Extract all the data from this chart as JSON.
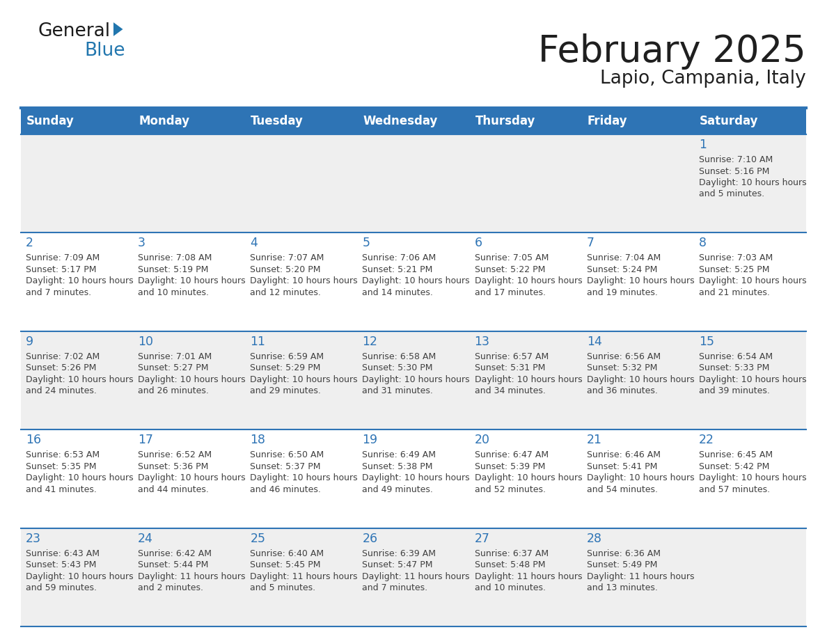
{
  "title": "February 2025",
  "subtitle": "Lapio, Campania, Italy",
  "days_of_week": [
    "Sunday",
    "Monday",
    "Tuesday",
    "Wednesday",
    "Thursday",
    "Friday",
    "Saturday"
  ],
  "header_bg": "#2E74B5",
  "header_text": "#FFFFFF",
  "cell_bg_even": "#EFEFEF",
  "cell_bg_odd": "#FFFFFF",
  "border_color": "#2E74B5",
  "day_number_color": "#2E74B5",
  "info_text_color": "#404040",
  "title_color": "#1F1F1F",
  "logo_black": "#1A1A1A",
  "logo_blue": "#2176AE",
  "calendar_data": [
    {
      "day": 1,
      "col": 6,
      "row": 0,
      "sunrise": "7:10 AM",
      "sunset": "5:16 PM",
      "daylight": "10 hours and 5 minutes."
    },
    {
      "day": 2,
      "col": 0,
      "row": 1,
      "sunrise": "7:09 AM",
      "sunset": "5:17 PM",
      "daylight": "10 hours and 7 minutes."
    },
    {
      "day": 3,
      "col": 1,
      "row": 1,
      "sunrise": "7:08 AM",
      "sunset": "5:19 PM",
      "daylight": "10 hours and 10 minutes."
    },
    {
      "day": 4,
      "col": 2,
      "row": 1,
      "sunrise": "7:07 AM",
      "sunset": "5:20 PM",
      "daylight": "10 hours and 12 minutes."
    },
    {
      "day": 5,
      "col": 3,
      "row": 1,
      "sunrise": "7:06 AM",
      "sunset": "5:21 PM",
      "daylight": "10 hours and 14 minutes."
    },
    {
      "day": 6,
      "col": 4,
      "row": 1,
      "sunrise": "7:05 AM",
      "sunset": "5:22 PM",
      "daylight": "10 hours and 17 minutes."
    },
    {
      "day": 7,
      "col": 5,
      "row": 1,
      "sunrise": "7:04 AM",
      "sunset": "5:24 PM",
      "daylight": "10 hours and 19 minutes."
    },
    {
      "day": 8,
      "col": 6,
      "row": 1,
      "sunrise": "7:03 AM",
      "sunset": "5:25 PM",
      "daylight": "10 hours and 21 minutes."
    },
    {
      "day": 9,
      "col": 0,
      "row": 2,
      "sunrise": "7:02 AM",
      "sunset": "5:26 PM",
      "daylight": "10 hours and 24 minutes."
    },
    {
      "day": 10,
      "col": 1,
      "row": 2,
      "sunrise": "7:01 AM",
      "sunset": "5:27 PM",
      "daylight": "10 hours and 26 minutes."
    },
    {
      "day": 11,
      "col": 2,
      "row": 2,
      "sunrise": "6:59 AM",
      "sunset": "5:29 PM",
      "daylight": "10 hours and 29 minutes."
    },
    {
      "day": 12,
      "col": 3,
      "row": 2,
      "sunrise": "6:58 AM",
      "sunset": "5:30 PM",
      "daylight": "10 hours and 31 minutes."
    },
    {
      "day": 13,
      "col": 4,
      "row": 2,
      "sunrise": "6:57 AM",
      "sunset": "5:31 PM",
      "daylight": "10 hours and 34 minutes."
    },
    {
      "day": 14,
      "col": 5,
      "row": 2,
      "sunrise": "6:56 AM",
      "sunset": "5:32 PM",
      "daylight": "10 hours and 36 minutes."
    },
    {
      "day": 15,
      "col": 6,
      "row": 2,
      "sunrise": "6:54 AM",
      "sunset": "5:33 PM",
      "daylight": "10 hours and 39 minutes."
    },
    {
      "day": 16,
      "col": 0,
      "row": 3,
      "sunrise": "6:53 AM",
      "sunset": "5:35 PM",
      "daylight": "10 hours and 41 minutes."
    },
    {
      "day": 17,
      "col": 1,
      "row": 3,
      "sunrise": "6:52 AM",
      "sunset": "5:36 PM",
      "daylight": "10 hours and 44 minutes."
    },
    {
      "day": 18,
      "col": 2,
      "row": 3,
      "sunrise": "6:50 AM",
      "sunset": "5:37 PM",
      "daylight": "10 hours and 46 minutes."
    },
    {
      "day": 19,
      "col": 3,
      "row": 3,
      "sunrise": "6:49 AM",
      "sunset": "5:38 PM",
      "daylight": "10 hours and 49 minutes."
    },
    {
      "day": 20,
      "col": 4,
      "row": 3,
      "sunrise": "6:47 AM",
      "sunset": "5:39 PM",
      "daylight": "10 hours and 52 minutes."
    },
    {
      "day": 21,
      "col": 5,
      "row": 3,
      "sunrise": "6:46 AM",
      "sunset": "5:41 PM",
      "daylight": "10 hours and 54 minutes."
    },
    {
      "day": 22,
      "col": 6,
      "row": 3,
      "sunrise": "6:45 AM",
      "sunset": "5:42 PM",
      "daylight": "10 hours and 57 minutes."
    },
    {
      "day": 23,
      "col": 0,
      "row": 4,
      "sunrise": "6:43 AM",
      "sunset": "5:43 PM",
      "daylight": "10 hours and 59 minutes."
    },
    {
      "day": 24,
      "col": 1,
      "row": 4,
      "sunrise": "6:42 AM",
      "sunset": "5:44 PM",
      "daylight": "11 hours and 2 minutes."
    },
    {
      "day": 25,
      "col": 2,
      "row": 4,
      "sunrise": "6:40 AM",
      "sunset": "5:45 PM",
      "daylight": "11 hours and 5 minutes."
    },
    {
      "day": 26,
      "col": 3,
      "row": 4,
      "sunrise": "6:39 AM",
      "sunset": "5:47 PM",
      "daylight": "11 hours and 7 minutes."
    },
    {
      "day": 27,
      "col": 4,
      "row": 4,
      "sunrise": "6:37 AM",
      "sunset": "5:48 PM",
      "daylight": "11 hours and 10 minutes."
    },
    {
      "day": 28,
      "col": 5,
      "row": 4,
      "sunrise": "6:36 AM",
      "sunset": "5:49 PM",
      "daylight": "11 hours and 13 minutes."
    }
  ]
}
